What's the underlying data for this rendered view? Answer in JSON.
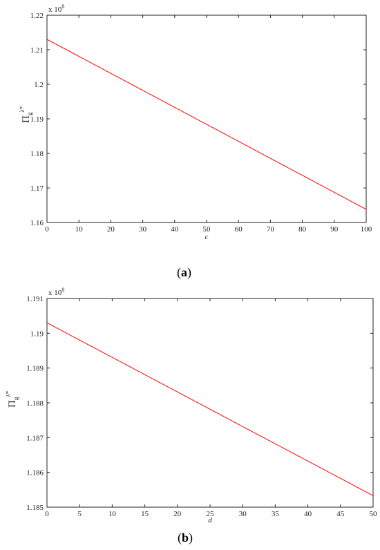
{
  "chart_data": [
    {
      "type": "line",
      "caption_letter": "a",
      "exponent_label": "x 10",
      "exponent_power": "8",
      "ylabel_symbol": "Π",
      "ylabel_sub": "g",
      "ylabel_sup": "λ*",
      "xlabel": "c",
      "xlim": [
        0,
        100
      ],
      "ylim": [
        1.16,
        1.22
      ],
      "xticks": [
        0,
        10,
        20,
        30,
        40,
        50,
        60,
        70,
        80,
        90,
        100
      ],
      "yticks": [
        1.16,
        1.17,
        1.18,
        1.19,
        1.2,
        1.21,
        1.22
      ],
      "yticklabels": [
        "1.16",
        "1.17",
        "1.18",
        "1.19",
        "1.2",
        "1.21",
        "1.22"
      ],
      "line_color": "#ff0000",
      "series": [
        {
          "x": [
            0,
            100
          ],
          "y": [
            1.213,
            1.1638
          ]
        }
      ]
    },
    {
      "type": "line",
      "caption_letter": "b",
      "exponent_label": "x 10",
      "exponent_power": "8",
      "ylabel_symbol": "Π",
      "ylabel_sub": "g",
      "ylabel_sup": "λ*",
      "xlabel": "d",
      "xlim": [
        0,
        50
      ],
      "ylim": [
        1.185,
        1.191
      ],
      "xticks": [
        0,
        5,
        10,
        15,
        20,
        25,
        30,
        35,
        40,
        45,
        50
      ],
      "yticks": [
        1.185,
        1.186,
        1.187,
        1.188,
        1.189,
        1.19,
        1.191
      ],
      "yticklabels": [
        "1.185",
        "1.186",
        "1.187",
        "1.188",
        "1.189",
        "1.19",
        "1.191"
      ],
      "line_color": "#ff0000",
      "series": [
        {
          "x": [
            0,
            50
          ],
          "y": [
            1.1903,
            1.18533
          ]
        }
      ]
    }
  ]
}
